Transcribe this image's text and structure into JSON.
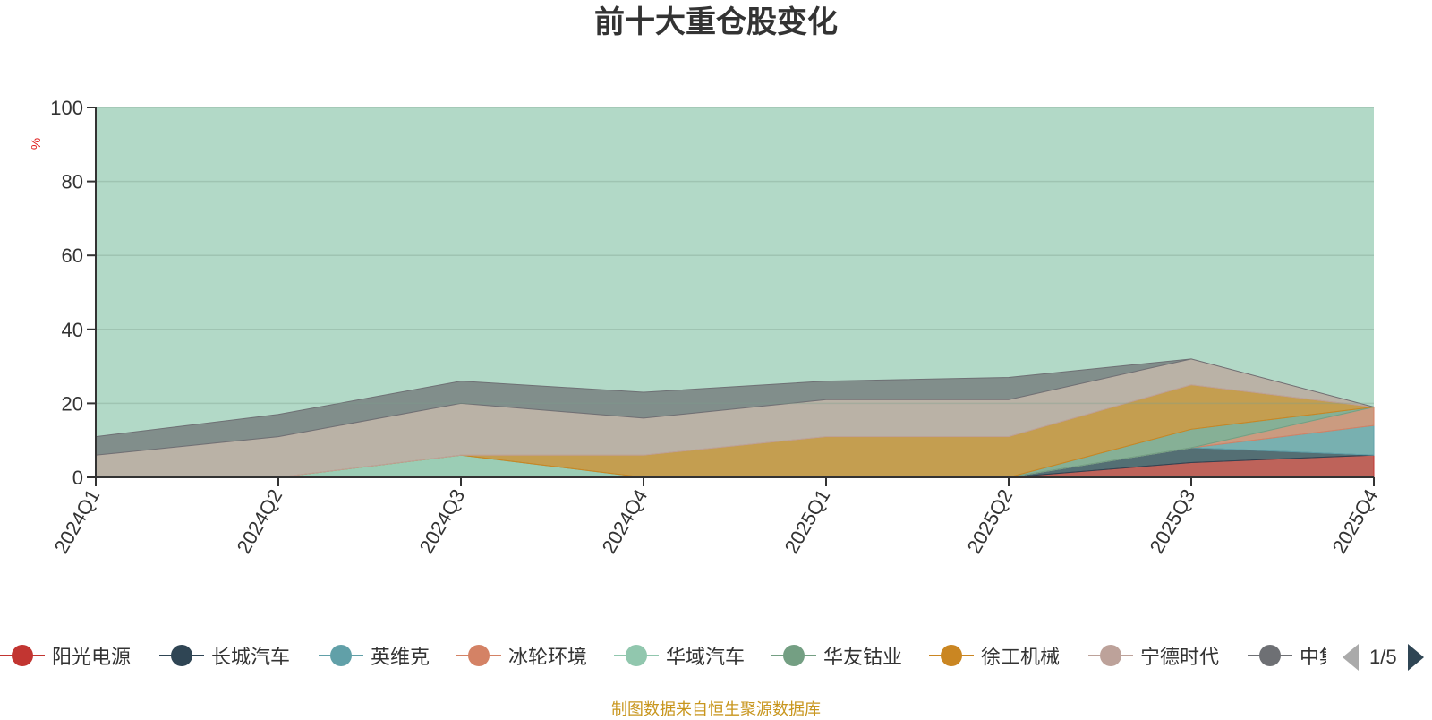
{
  "chart_data": {
    "type": "area",
    "stacked": true,
    "title": "前十大重仓股变化",
    "ylabel": "%",
    "ylim": [
      0,
      100
    ],
    "yticks": [
      0,
      20,
      40,
      60,
      80,
      100
    ],
    "categories": [
      "2024Q1",
      "2024Q2",
      "2024Q3",
      "2024Q4",
      "2025Q1",
      "2025Q2",
      "2025Q3",
      "2025Q4"
    ],
    "series": [
      {
        "name": "阳光电源",
        "color": "#c23531",
        "values": [
          0,
          0,
          0,
          0,
          0,
          0,
          4,
          6
        ]
      },
      {
        "name": "长城汽车",
        "color": "#2f4554",
        "values": [
          0,
          0,
          0,
          0,
          0,
          0,
          4,
          0
        ]
      },
      {
        "name": "英维克",
        "color": "#61a0a8",
        "values": [
          0,
          0,
          0,
          0,
          0,
          0,
          0,
          8
        ]
      },
      {
        "name": "冰轮环境",
        "color": "#d48265",
        "values": [
          0,
          0,
          0,
          0,
          0,
          0,
          0,
          5
        ]
      },
      {
        "name": "华域汽车",
        "color": "#91c7ae",
        "values": [
          0,
          0,
          6,
          0,
          0,
          0,
          0,
          0
        ]
      },
      {
        "name": "华友钴业",
        "color": "#749f83",
        "values": [
          0,
          0,
          0,
          0,
          0,
          0,
          5,
          0
        ]
      },
      {
        "name": "徐工机械",
        "color": "#ca8622",
        "values": [
          0,
          0,
          0,
          6,
          11,
          11,
          12,
          0
        ]
      },
      {
        "name": "宁德时代",
        "color": "#bda29a",
        "values": [
          6,
          11,
          14,
          10,
          10,
          10,
          7,
          0
        ]
      },
      {
        "name": "中集集团",
        "color": "#6e7074",
        "values": [
          5,
          6,
          6,
          7,
          5,
          6,
          0,
          0
        ]
      }
    ]
  },
  "legend": {
    "items": [
      {
        "name": "阳光电源",
        "color": "#c23531"
      },
      {
        "name": "长城汽车",
        "color": "#2f4554"
      },
      {
        "name": "英维克",
        "color": "#61a0a8"
      },
      {
        "name": "冰轮环境",
        "color": "#d48265"
      },
      {
        "name": "华域汽车",
        "color": "#91c7ae"
      },
      {
        "name": "华友钴业",
        "color": "#749f83"
      },
      {
        "name": "徐工机械",
        "color": "#ca8622"
      },
      {
        "name": "宁德时代",
        "color": "#bda29a"
      },
      {
        "name": "中集集团",
        "color": "#6e7074"
      }
    ],
    "page": "1/5"
  },
  "source": "制图数据来自恒生聚源数据库"
}
